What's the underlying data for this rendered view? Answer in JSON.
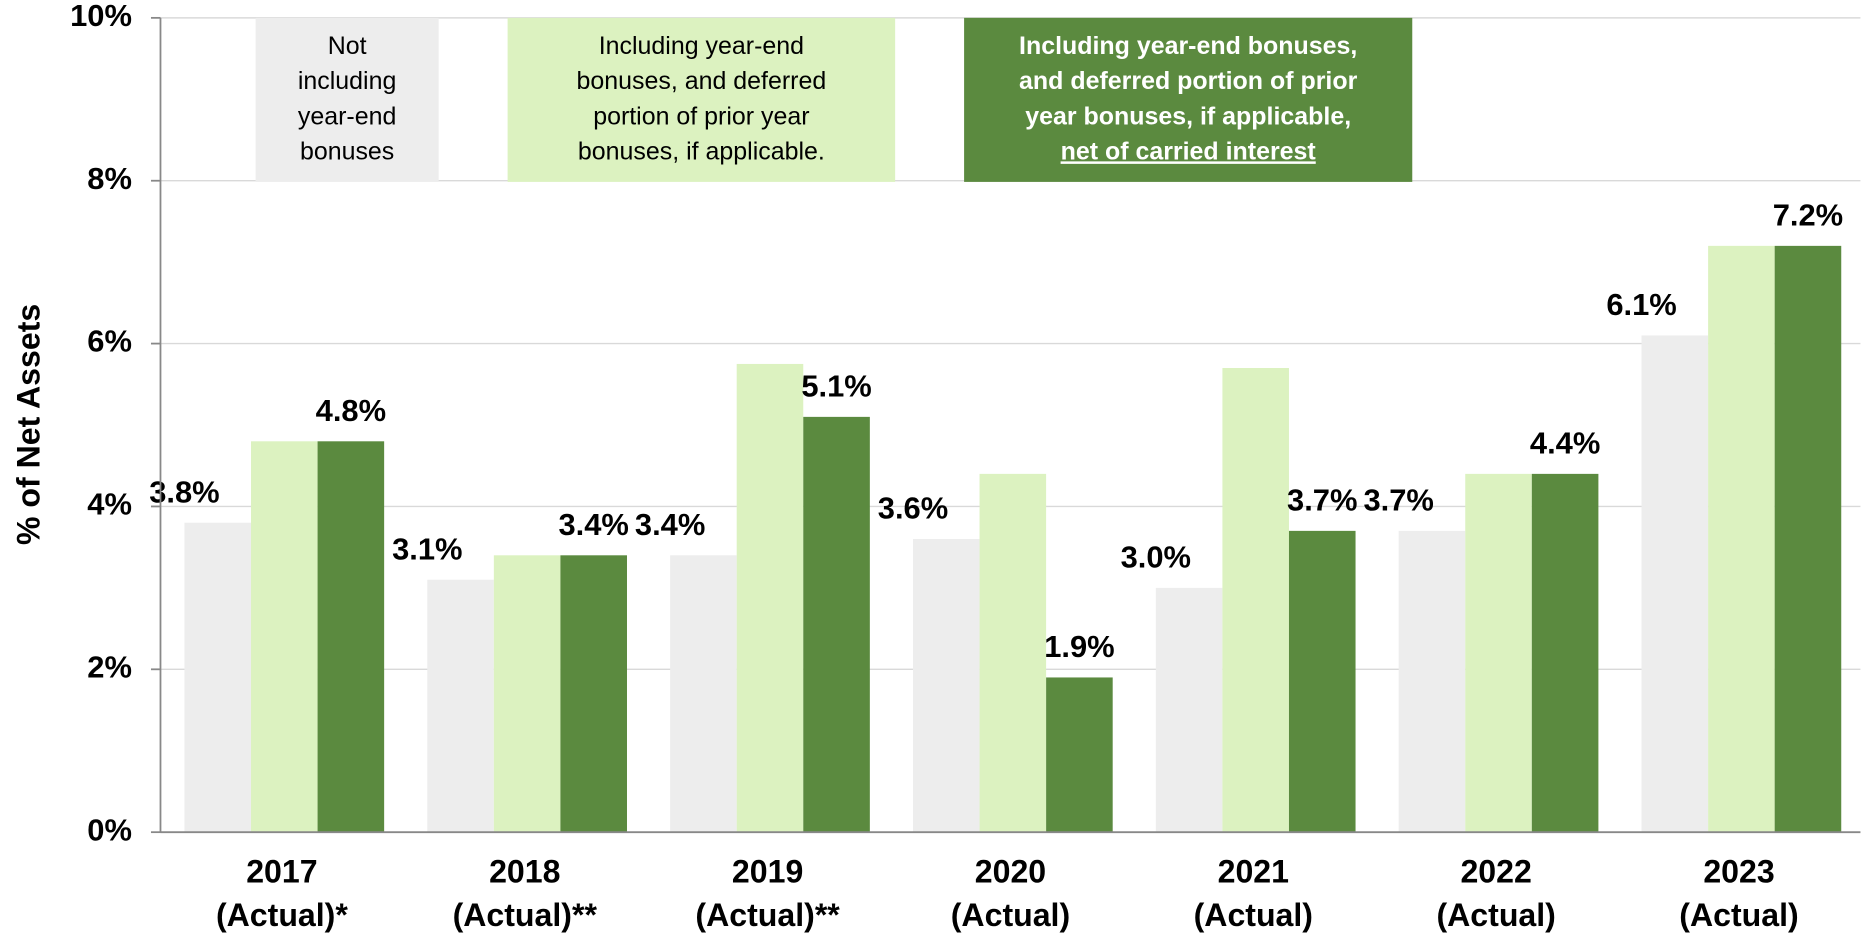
{
  "chart_data": {
    "type": "bar",
    "y_label": "% of Net Assets",
    "categories": [
      [
        "2017",
        "(Actual)*"
      ],
      [
        "2018",
        "(Actual)**"
      ],
      [
        "2019",
        "(Actual)**"
      ],
      [
        "2020",
        "(Actual)"
      ],
      [
        "2021",
        "(Actual)"
      ],
      [
        "2022",
        "(Actual)"
      ],
      [
        "2023",
        "(Actual)"
      ]
    ],
    "series": [
      {
        "name": [
          "Not",
          "including",
          "year-end",
          "bonuses"
        ],
        "color": "#ededed",
        "values": [
          3.8,
          3.1,
          3.4,
          3.6,
          3.0,
          3.7,
          6.1
        ],
        "value_labels": [
          "3.8%",
          "3.1%",
          "3.4%",
          "3.6%",
          "3.0%",
          "3.7%",
          "6.1%"
        ]
      },
      {
        "name": [
          "Including year-end",
          "bonuses, and deferred",
          "portion of prior year",
          "bonuses, if applicable."
        ],
        "color": "#dcf2c0",
        "values": [
          4.8,
          3.4,
          5.75,
          4.4,
          5.7,
          4.4,
          7.2
        ]
      },
      {
        "name": [
          "Including year-end bonuses,",
          "and deferred portion of prior",
          "year bonuses, if applicable,",
          "net of carried interest"
        ],
        "color": "#5b8a3f",
        "values": [
          4.8,
          3.4,
          5.1,
          1.9,
          3.7,
          4.4,
          7.2
        ],
        "value_labels": [
          "4.8%",
          "3.4%",
          "5.1%",
          "1.9%",
          "3.7%",
          "4.4%",
          "7.2%"
        ]
      }
    ],
    "ylim": [
      0,
      10
    ],
    "yticks": [
      {
        "value": 0,
        "label": "0%"
      },
      {
        "value": 2,
        "label": "2%"
      },
      {
        "value": 4,
        "label": "4%"
      },
      {
        "value": 6,
        "label": "6%"
      },
      {
        "value": 8,
        "label": "8%"
      },
      {
        "value": 10,
        "label": "10%"
      }
    ],
    "grid": true
  }
}
